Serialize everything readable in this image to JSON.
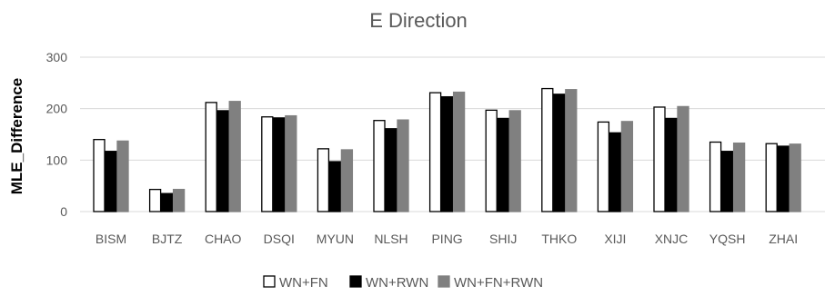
{
  "chart_data": {
    "type": "bar",
    "title": "E Direction",
    "xlabel": "",
    "ylabel": "MLE_Difference",
    "ylim": [
      0,
      300
    ],
    "yticks": [
      0,
      100,
      200,
      300
    ],
    "grid": true,
    "legend_position": "bottom",
    "categories": [
      "BISM",
      "BJTZ",
      "CHAO",
      "DSQI",
      "MYUN",
      "NLSH",
      "PING",
      "SHIJ",
      "THKO",
      "XIJI",
      "XNJC",
      "YQSH",
      "ZHAI"
    ],
    "series": [
      {
        "name": "WN+FN",
        "color": "#ffffff",
        "stroke": "#000000",
        "values": [
          140,
          43,
          212,
          184,
          122,
          177,
          231,
          197,
          239,
          174,
          203,
          135,
          132
        ]
      },
      {
        "name": "WN+RWN",
        "color": "#000000",
        "stroke": "#000000",
        "values": [
          117,
          35,
          196,
          182,
          97,
          161,
          223,
          181,
          228,
          153,
          181,
          117,
          127
        ]
      },
      {
        "name": "WN+FN+RWN",
        "color": "#808080",
        "stroke": "#808080",
        "values": [
          137,
          43,
          214,
          186,
          120,
          178,
          232,
          196,
          237,
          175,
          204,
          133,
          131
        ]
      }
    ]
  }
}
